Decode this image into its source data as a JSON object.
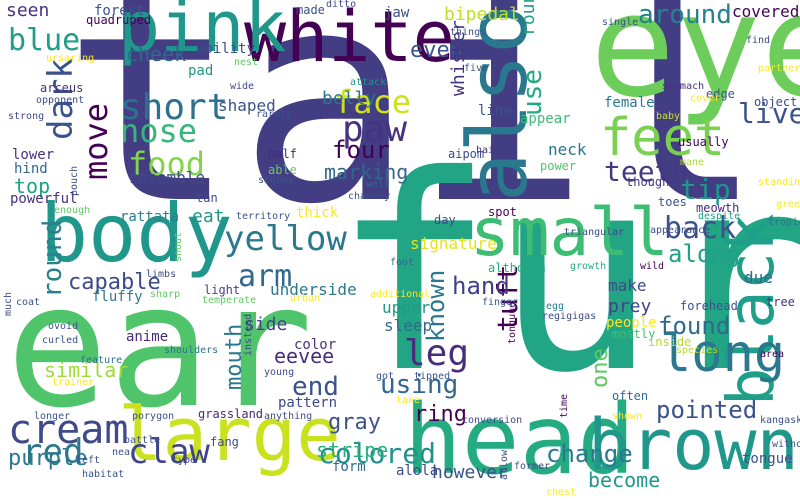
{
  "words": [
    {
      "id": "tail",
      "text": "tail",
      "color": "#433d84"
    },
    {
      "id": "fur",
      "text": "fur",
      "color": "#21a585"
    },
    {
      "id": "ear",
      "text": "ear",
      "color": "#50c46a"
    },
    {
      "id": "eye",
      "text": "eye",
      "color": "#6ccd5a"
    },
    {
      "id": "head",
      "text": "head",
      "color": "#25ab82"
    },
    {
      "id": "body",
      "text": "body",
      "color": "#1f988b"
    },
    {
      "id": "large",
      "text": "large",
      "color": "#cae11f"
    },
    {
      "id": "brown",
      "text": "brown",
      "color": "#1f988b"
    },
    {
      "id": "white",
      "text": "white",
      "color": "#440154"
    },
    {
      "id": "small",
      "text": "small",
      "color": "#3dbc74"
    },
    {
      "id": "also",
      "text": "also",
      "color": "#2a788e"
    },
    {
      "id": "pink",
      "text": "pink",
      "color": "#1f988b"
    },
    {
      "id": "black",
      "text": "black",
      "color": "#1f9e89"
    },
    {
      "id": "long",
      "text": "long",
      "color": "#2a788e"
    },
    {
      "id": "feet",
      "text": "feet",
      "color": "#7ad151"
    },
    {
      "id": "cream",
      "text": "cream",
      "color": "#3e4a89"
    },
    {
      "id": "yellow",
      "text": "yellow",
      "color": "#2a788e"
    },
    {
      "id": "short",
      "text": "short",
      "color": "#2c728e"
    },
    {
      "id": "paw",
      "text": "paw",
      "color": "#46327e"
    },
    {
      "id": "nose",
      "text": "nose",
      "color": "#35b779"
    },
    {
      "id": "blue",
      "text": "blue",
      "color": "#1f9e89"
    },
    {
      "id": "face",
      "text": "face",
      "color": "#d0e11c"
    },
    {
      "id": "around",
      "text": "around",
      "color": "#26828e"
    },
    {
      "id": "claw",
      "text": "claw",
      "color": "#414487"
    },
    {
      "id": "red",
      "text": "red",
      "color": "#2a788e"
    },
    {
      "id": "back",
      "text": "back",
      "color": "#3b528b"
    },
    {
      "id": "leg",
      "text": "leg",
      "color": "#472d7b"
    },
    {
      "id": "live",
      "text": "live",
      "color": "#3b528b"
    },
    {
      "id": "purple",
      "text": "purple",
      "color": "#2a788e"
    },
    {
      "id": "change",
      "text": "change",
      "color": "#2a788e"
    },
    {
      "id": "pointed",
      "text": "pointed",
      "color": "#3b528b"
    },
    {
      "id": "colored",
      "text": "colored",
      "color": "#21918c"
    },
    {
      "id": "dark",
      "text": "dark",
      "color": "#3b528b"
    },
    {
      "id": "move",
      "text": "move",
      "color": "#440154"
    },
    {
      "id": "food",
      "text": "food",
      "color": "#84d44b"
    },
    {
      "id": "tip",
      "text": "tip",
      "color": "#1f988b"
    },
    {
      "id": "teeth",
      "text": "teeth",
      "color": "#443983"
    },
    {
      "id": "four",
      "text": "four",
      "color": "#440154"
    },
    {
      "id": "arm",
      "text": "arm",
      "color": "#31688e"
    },
    {
      "id": "tuft",
      "text": "tuft",
      "color": "#440154"
    },
    {
      "id": "known",
      "text": "known",
      "color": "#2a788e"
    },
    {
      "id": "hand",
      "text": "hand",
      "color": "#433e85"
    },
    {
      "id": "along",
      "text": "along",
      "color": "#1fa287"
    },
    {
      "id": "round",
      "text": "round",
      "color": "#27808e"
    },
    {
      "id": "end",
      "text": "end",
      "color": "#3b528b"
    },
    {
      "id": "using",
      "text": "using",
      "color": "#31688e"
    },
    {
      "id": "found",
      "text": "found",
      "color": "#31688e"
    },
    {
      "id": "use",
      "text": "use",
      "color": "#22a884"
    },
    {
      "id": "capable",
      "text": "capable",
      "color": "#3e4a89"
    },
    {
      "id": "similar",
      "text": "similar",
      "color": "#a0da39"
    },
    {
      "id": "one",
      "text": "one",
      "color": "#5ec962"
    },
    {
      "id": "mouth",
      "text": "mouth",
      "color": "#2a788e"
    },
    {
      "id": "gray",
      "text": "gray",
      "color": "#3b528b"
    },
    {
      "id": "become",
      "text": "become",
      "color": "#1f988b"
    },
    {
      "id": "however",
      "text": "however",
      "color": "#3b528b"
    },
    {
      "id": "marking",
      "text": "marking",
      "color": "#31688e"
    },
    {
      "id": "cheek",
      "text": "cheek",
      "color": "#31688e"
    },
    {
      "id": "ring",
      "text": "ring",
      "color": "#440154"
    },
    {
      "id": "stripe",
      "text": "stripe",
      "color": "#2ab07f"
    },
    {
      "id": "even",
      "text": "even",
      "color": "#3b528b"
    },
    {
      "id": "belly",
      "text": "belly",
      "color": "#2a788e"
    },
    {
      "id": "eevee",
      "text": "eevee",
      "color": "#472d7b"
    },
    {
      "id": "top",
      "text": "top",
      "color": "#20a386"
    },
    {
      "id": "bipedal",
      "text": "bipedal",
      "color": "#bddf26"
    },
    {
      "id": "seen",
      "text": "seen",
      "color": "#46337f"
    },
    {
      "id": "underside",
      "text": "underside",
      "color": "#2a788e"
    },
    {
      "id": "signature",
      "text": "signature",
      "color": "#e5e419"
    },
    {
      "id": "side",
      "text": "side",
      "color": "#414487"
    },
    {
      "id": "eat",
      "text": "eat",
      "color": "#1f988b"
    },
    {
      "id": "whisker",
      "text": "whisker",
      "color": "#46327e"
    },
    {
      "id": "rounded",
      "text": "rounded",
      "color": "#1fa287"
    },
    {
      "id": "covered",
      "text": "covered",
      "color": "#440154"
    },
    {
      "id": "neck",
      "text": "neck",
      "color": "#2a788e"
    },
    {
      "id": "prey",
      "text": "prey",
      "color": "#414487"
    },
    {
      "id": "make",
      "text": "make",
      "color": "#3e4a89"
    },
    {
      "id": "sleep",
      "text": "sleep",
      "color": "#31688e"
    },
    {
      "id": "upper",
      "text": "upper",
      "color": "#1f988b"
    },
    {
      "id": "resemble",
      "text": "resemble",
      "color": "#3e4a89"
    },
    {
      "id": "shaped",
      "text": "shaped",
      "color": "#3b528b"
    },
    {
      "id": "anime",
      "text": "anime",
      "color": "#482878"
    },
    {
      "id": "color",
      "text": "color",
      "color": "#46337f"
    },
    {
      "id": "pattern",
      "text": "pattern",
      "color": "#3e4a89"
    },
    {
      "id": "fluffy",
      "text": "fluffy",
      "color": "#2a788e"
    },
    {
      "id": "rattata",
      "text": "rattata",
      "color": "#26828e"
    },
    {
      "id": "forest",
      "text": "forest",
      "color": "#3b528b"
    },
    {
      "id": "quadruped",
      "text": "quadruped",
      "color": "#440154"
    },
    {
      "id": "ability",
      "text": "ability",
      "color": "#3e4a89"
    },
    {
      "id": "jaw",
      "text": "jaw",
      "color": "#3b528b"
    },
    {
      "id": "pad",
      "text": "pad",
      "color": "#1f988b"
    },
    {
      "id": "arceus",
      "text": "arceus",
      "color": "#46327e"
    },
    {
      "id": "lower",
      "text": "lower",
      "color": "#46337f"
    },
    {
      "id": "hind",
      "text": "hind",
      "color": "#31688e"
    },
    {
      "id": "powerful",
      "text": "powerful",
      "color": "#46327e"
    },
    {
      "id": "tan",
      "text": "tan",
      "color": "#3e4a89"
    },
    {
      "id": "light",
      "text": "light",
      "color": "#414487"
    },
    {
      "id": "able",
      "text": "able",
      "color": "#65cb5e"
    },
    {
      "id": "half",
      "text": "half",
      "color": "#482878"
    },
    {
      "id": "thick",
      "text": "thick",
      "color": "#fde725"
    },
    {
      "id": "form",
      "text": "form",
      "color": "#31688e"
    },
    {
      "id": "female",
      "text": "female",
      "color": "#2a788e"
    },
    {
      "id": "appear",
      "text": "appear",
      "color": "#3dbc74"
    },
    {
      "id": "line",
      "text": "line",
      "color": "#3b528b"
    },
    {
      "id": "toes",
      "text": "toes",
      "color": "#3b528b"
    },
    {
      "id": "meowth",
      "text": "meowth",
      "color": "#482878"
    },
    {
      "id": "forehead",
      "text": "forehead",
      "color": "#3b528b"
    },
    {
      "id": "tree",
      "text": "tree",
      "color": "#46327e"
    },
    {
      "id": "due",
      "text": "due",
      "color": "#31688e"
    },
    {
      "id": "tongue",
      "text": "tongue",
      "color": "#3b528b"
    },
    {
      "id": "people",
      "text": "people",
      "color": "#fde725"
    },
    {
      "id": "mostly",
      "text": "mostly",
      "color": "#44bf70"
    },
    {
      "id": "inside",
      "text": "inside",
      "color": "#b5de2b"
    },
    {
      "id": "often",
      "text": "often",
      "color": "#31688e"
    },
    {
      "id": "alola",
      "text": "alola",
      "color": "#3e4a89"
    },
    {
      "id": "grassland",
      "text": "grassland",
      "color": "#482878"
    },
    {
      "id": "fang",
      "text": "fang",
      "color": "#3e4a89"
    },
    {
      "id": "spot",
      "text": "spot",
      "color": "#440154"
    },
    {
      "id": "although",
      "text": "although",
      "color": "#25ab82"
    },
    {
      "id": "growth",
      "text": "growth",
      "color": "#25ab82"
    },
    {
      "id": "wild",
      "text": "wild",
      "color": "#440154"
    },
    {
      "id": "day",
      "text": "day",
      "color": "#3e4a89"
    },
    {
      "id": "territory",
      "text": "territory",
      "color": "#3b528b"
    },
    {
      "id": "edge",
      "text": "edge",
      "color": "#2c728e"
    },
    {
      "id": "object",
      "text": "object",
      "color": "#3b528b"
    },
    {
      "id": "though",
      "text": "though",
      "color": "#3e4a89"
    },
    {
      "id": "usually",
      "text": "usually",
      "color": "#46337f"
    },
    {
      "id": "aipom",
      "text": "aipom",
      "color": "#440154"
    },
    {
      "id": "power",
      "text": "power",
      "color": "#3e4a89"
    },
    {
      "id": "well",
      "text": "well",
      "color": "#52c569"
    },
    {
      "id": "stubby",
      "text": "stubby",
      "color": "#31688e"
    },
    {
      "id": "made",
      "text": "made",
      "color": "#3b528b"
    },
    {
      "id": "ditto",
      "text": "ditto",
      "color": "#3b528b"
    },
    {
      "id": "things",
      "text": "things",
      "color": "#3e4a89"
    },
    {
      "id": "attack",
      "text": "attack",
      "color": "#3b528b"
    },
    {
      "id": "wide",
      "text": "wide",
      "color": "#1f988b"
    },
    {
      "id": "nest",
      "text": "nest",
      "color": "#3e4a89"
    },
    {
      "id": "rarely",
      "text": "rarely",
      "color": "#5ec962"
    },
    {
      "id": "five",
      "text": "five",
      "color": "#3b528b"
    },
    {
      "id": "hair",
      "text": "hair",
      "color": "#3b528b"
    },
    {
      "id": "stomach",
      "text": "stomach",
      "color": "#46327e"
    },
    {
      "id": "single",
      "text": "single",
      "color": "#46327e"
    },
    {
      "id": "find",
      "text": "find",
      "color": "#3b528b"
    },
    {
      "id": "partner",
      "text": "partner",
      "color": "#3e4a89"
    },
    {
      "id": "cover",
      "text": "cover",
      "color": "#fde725"
    },
    {
      "id": "baby",
      "text": "baby",
      "color": "#fde725"
    },
    {
      "id": "mane",
      "text": "mane",
      "color": "#c8e020"
    },
    {
      "id": "standing",
      "text": "standing",
      "color": "#addc30"
    },
    {
      "id": "despite",
      "text": "despite",
      "color": "#fde725"
    },
    {
      "id": "tropical",
      "text": "tropical",
      "color": "#20a386"
    },
    {
      "id": "green",
      "text": "green",
      "color": "#2c728e"
    },
    {
      "id": "appearance",
      "text": "appearance",
      "color": "#fde725"
    },
    {
      "id": "area",
      "text": "area",
      "color": "#3e4a89"
    },
    {
      "id": "species",
      "text": "species",
      "color": "#440154"
    },
    {
      "id": "kangaskhan",
      "text": "kangaskhan",
      "color": "#bddf26"
    },
    {
      "id": "without",
      "text": "without",
      "color": "#3b528b"
    },
    {
      "id": "mother",
      "text": "mother",
      "color": "#3b528b"
    },
    {
      "id": "tonguue",
      "text": "tonguue",
      "color": "#3b528b"
    },
    {
      "id": "regigigas",
      "text": "regigigas",
      "color": "#440154"
    },
    {
      "id": "finger",
      "text": "finger",
      "color": "#3e4a89"
    },
    {
      "id": "egg",
      "text": "egg",
      "color": "#3b528b"
    },
    {
      "id": "time",
      "text": "time",
      "color": "#26828e"
    },
    {
      "id": "tipped",
      "text": "tipped",
      "color": "#440154"
    },
    {
      "id": "former",
      "text": "former",
      "color": "#3b528b"
    },
    {
      "id": "chest",
      "text": "chest",
      "color": "#3b528b"
    },
    {
      "id": "shown",
      "text": "shown",
      "color": "#fde725"
    },
    {
      "id": "gold",
      "text": "got",
      "color": "#fde725"
    },
    {
      "id": "take",
      "text": "take",
      "color": "#3b528b"
    },
    {
      "id": "young",
      "text": "young",
      "color": "#fde725"
    },
    {
      "id": "conversion",
      "text": "conversion",
      "color": "#3e4a89"
    },
    {
      "id": "anything",
      "text": "anything",
      "color": "#3e4a89"
    },
    {
      "id": "instead",
      "text": "instead",
      "color": "#3e4a89"
    },
    {
      "id": "shoulders",
      "text": "shoulders",
      "color": "#3e4a89"
    },
    {
      "id": "urban",
      "text": "urban",
      "color": "#2c728e"
    },
    {
      "id": "additional",
      "text": "additional",
      "color": "#fde725"
    },
    {
      "id": "foot",
      "text": "foot",
      "color": "#fde725"
    },
    {
      "id": "temperate",
      "text": "temperate",
      "color": "#31688e"
    },
    {
      "id": "sharp",
      "text": "sharp",
      "color": "#5ec962"
    },
    {
      "id": "limbs",
      "text": "limbs",
      "color": "#5ec962"
    },
    {
      "id": "snout",
      "text": "snout",
      "color": "#3e4a89"
    },
    {
      "id": "chansey",
      "text": "chansey",
      "color": "#5ec962"
    },
    {
      "id": "type",
      "text": "type",
      "color": "#3b528b"
    },
    {
      "id": "porygon",
      "text": "porygon",
      "color": "#3e4a89"
    },
    {
      "id": "allow",
      "text": "allow",
      "color": "#3b528b"
    },
    {
      "id": "battle",
      "text": "battle",
      "color": "#3b528b"
    },
    {
      "id": "near",
      "text": "near",
      "color": "#3b528b"
    },
    {
      "id": "left",
      "text": "left",
      "color": "#3b528b"
    },
    {
      "id": "habitat",
      "text": "habitat",
      "color": "#3b528b"
    },
    {
      "id": "longer",
      "text": "longer",
      "color": "#3b528b"
    },
    {
      "id": "trainer",
      "text": "trainer",
      "color": "#3b528b"
    },
    {
      "id": "feature",
      "text": "feature",
      "color": "#fde725"
    },
    {
      "id": "ovoid",
      "text": "ovoid",
      "color": "#2c728e"
    },
    {
      "id": "curled",
      "text": "curled",
      "color": "#3b528b"
    },
    {
      "id": "coat",
      "text": "coat",
      "color": "#3b528b"
    },
    {
      "id": "much",
      "text": "much",
      "color": "#3b528b"
    },
    {
      "id": "enough",
      "text": "enough",
      "color": "#3e4a89"
    },
    {
      "id": "strong",
      "text": "strong",
      "color": "#5ec962"
    },
    {
      "id": "opponent",
      "text": "opponent",
      "color": "#3e4a89"
    },
    {
      "id": "ursaring",
      "text": "ursaring",
      "color": "#3e4a89"
    },
    {
      "id": "pouch",
      "text": "pouch",
      "color": "#fde725"
    },
    {
      "id": "triangular",
      "text": "triangular",
      "color": "#3e4a89"
    },
    {
      "id": "smeargle",
      "text": "smeargle",
      "color": "#3e4a89"
    }
  ]
}
